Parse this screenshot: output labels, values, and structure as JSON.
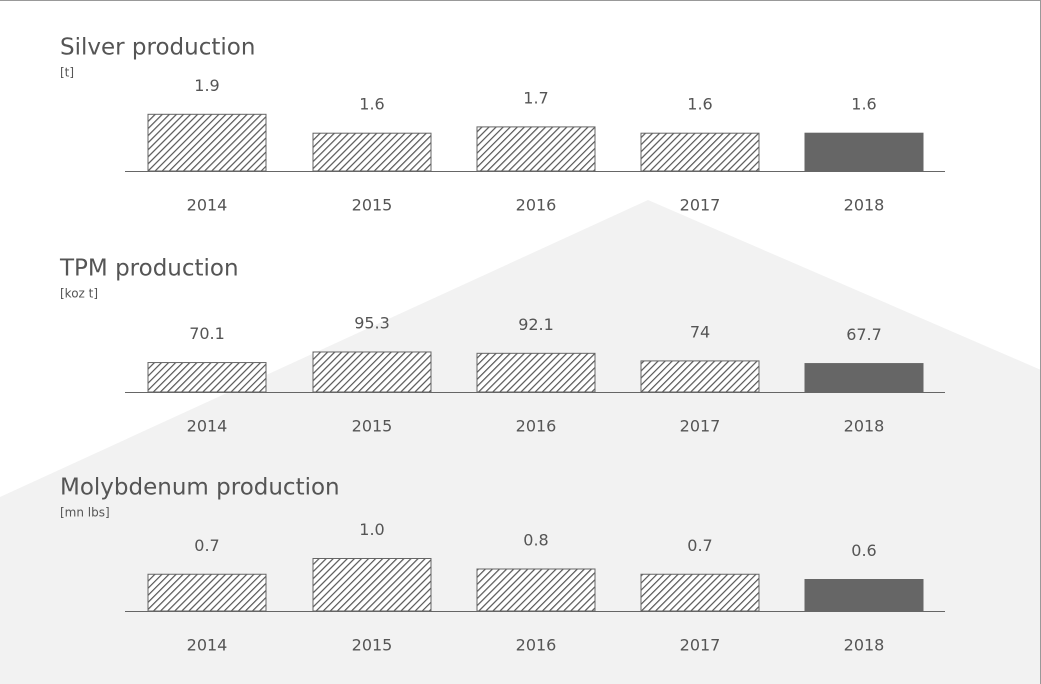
{
  "chart_data": [
    {
      "type": "bar",
      "title": "Silver production",
      "subtitle": "[t]",
      "categories": [
        "2014",
        "2015",
        "2016",
        "2017",
        "2018"
      ],
      "values": [
        1.9,
        1.6,
        1.7,
        1.6,
        1.6
      ],
      "hatched": [
        true,
        true,
        true,
        true,
        false
      ],
      "color": "#666666",
      "ylim": [
        1,
        2
      ]
    },
    {
      "type": "bar",
      "title": "TPM production",
      "subtitle": "[koz t]",
      "categories": [
        "2014",
        "2015",
        "2016",
        "2017",
        "2018"
      ],
      "values": [
        70.1,
        95.3,
        92.1,
        74,
        67.7
      ],
      "hatched": [
        true,
        true,
        true,
        true,
        false
      ],
      "color": "#666666",
      "ylim": [
        0,
        150
      ]
    },
    {
      "type": "bar",
      "title": "Molybdenum production",
      "subtitle": "[mn lbs]",
      "categories": [
        "2014",
        "2015",
        "2016",
        "2017",
        "2018"
      ],
      "values": [
        0.7,
        1.0,
        0.8,
        0.7,
        0.6
      ],
      "value_labels": [
        "0.7",
        "1.0",
        "0.8",
        "0.7",
        "0.6"
      ],
      "hatched": [
        true,
        true,
        true,
        true,
        false
      ],
      "color": "#666666",
      "ylim": [
        0,
        1.2
      ]
    }
  ]
}
